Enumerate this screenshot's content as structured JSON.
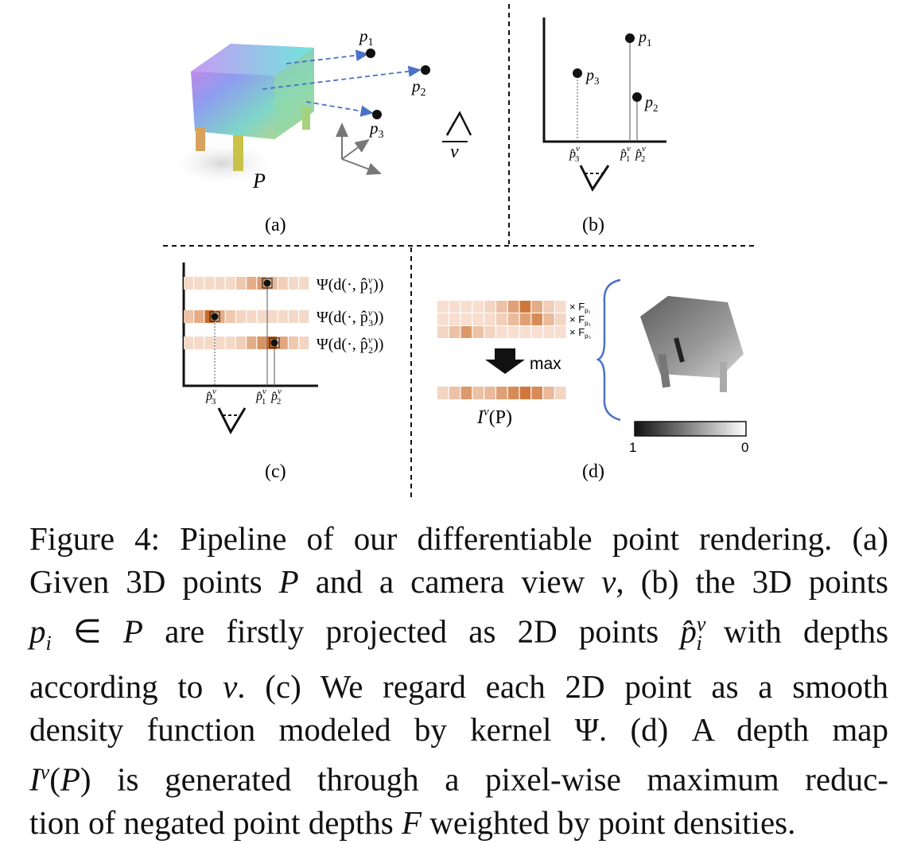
{
  "panels": {
    "a": {
      "label": "(a)",
      "cloud_label": "P",
      "view_label": "v",
      "points": [
        "p",
        "p",
        "p"
      ],
      "subs": [
        "1",
        "2",
        "3"
      ]
    },
    "b": {
      "label": "(b)",
      "points": [
        "p",
        "p",
        "p"
      ],
      "subs": [
        "3",
        "1",
        "2"
      ],
      "proj": [
        "p̂",
        "p̂",
        "p̂"
      ],
      "proj_sup": "v",
      "proj_subs": [
        "3",
        "1",
        "2"
      ]
    },
    "c": {
      "label": "(c)",
      "kernels": [
        "Ψ(d(·, p̂",
        "Ψ(d(·, p̂",
        "Ψ(d(·, p̂"
      ],
      "kernel_subs": [
        "1",
        "3",
        "2"
      ],
      "kernel_sup": "v",
      "kernel_close": "))",
      "proj": [
        "p̂",
        "p̂",
        "p̂"
      ],
      "proj_sup": "v",
      "proj_subs": [
        "3",
        "1",
        "2"
      ]
    },
    "d": {
      "label": "(d)",
      "reduce_label": "max",
      "weights": [
        "× F",
        "× F",
        "× F"
      ],
      "weight_subs": [
        "p₁",
        "p₂",
        "p₃"
      ],
      "output_label": "I",
      "output_sup": "v",
      "output_arg": "(P)",
      "colorbar_min": "1",
      "colorbar_max": "0"
    }
  },
  "heat_rows": {
    "c_row1": [
      0.12,
      0.12,
      0.12,
      0.12,
      0.12,
      0.25,
      0.45,
      0.6,
      0.35,
      0.2,
      0.12,
      0.12
    ],
    "c_row3": [
      0.3,
      0.45,
      0.95,
      0.45,
      0.25,
      0.15,
      0.12,
      0.12,
      0.12,
      0.12,
      0.12,
      0.12
    ],
    "c_row2": [
      0.12,
      0.12,
      0.12,
      0.12,
      0.12,
      0.2,
      0.45,
      0.65,
      0.95,
      0.5,
      0.25,
      0.15
    ],
    "d_row1": [
      0.08,
      0.08,
      0.08,
      0.08,
      0.15,
      0.3,
      0.55,
      0.85,
      0.45,
      0.2,
      0.1
    ],
    "d_row2": [
      0.08,
      0.08,
      0.08,
      0.08,
      0.1,
      0.2,
      0.35,
      0.55,
      0.7,
      0.35,
      0.15
    ],
    "d_row3": [
      0.15,
      0.3,
      0.6,
      0.3,
      0.15,
      0.08,
      0.08,
      0.08,
      0.08,
      0.08,
      0.08
    ],
    "d_out": [
      0.15,
      0.3,
      0.6,
      0.3,
      0.35,
      0.55,
      0.7,
      0.85,
      0.7,
      0.35,
      0.15
    ]
  },
  "caption": {
    "lines": [
      "Figure 4: Pipeline of our differentiable point rendering. (a)",
      "Given 3D points P and a camera view v, (b) the 3D points",
      "p_i ∈ P are firstly projected as 2D points p̂_i^v with depths",
      "according to v. (c) We regard each 2D point as a smooth",
      "density function modeled by kernel Ψ. (d) A depth map",
      "I^v(P) is generated through a pixel-wise maximum reduc-",
      "tion of negated point depths F weighted by point densities."
    ],
    "l1": "Figure 4: Pipeline of our differentiable point rendering. (a)",
    "l2a": "Given 3D points ",
    "l2b": "P",
    "l2c": " and a camera view ",
    "l2d": "v",
    "l2e": ", (b) the 3D points",
    "l3a": "p",
    "l3sub": "i",
    "l3b": " ∈ ",
    "l3c": "P",
    "l3d": " are firstly projected as 2D points ",
    "l3e": "p̂",
    "l3sup": "v",
    "l3sub2": "i",
    "l3f": " with depths",
    "l4a": "according to ",
    "l4b": "v",
    "l4c": ". (c) We regard each 2D point as a smooth",
    "l5a": "density function modeled by kernel ",
    "l5b": "Ψ",
    "l5c": ". (d) A depth map",
    "l6a": "I",
    "l6sup": "v",
    "l6b": "(",
    "l6c": "P",
    "l6d": ") is generated through a pixel-wise maximum reduc-",
    "l7a": "tion of negated point depths ",
    "l7b": "F",
    "l7c": " weighted by point densities."
  },
  "colors": {
    "accent_blue": "#4a72c4",
    "heat_high": "#c8641e",
    "heat_low": "#fbe9df",
    "line": "#111111"
  }
}
